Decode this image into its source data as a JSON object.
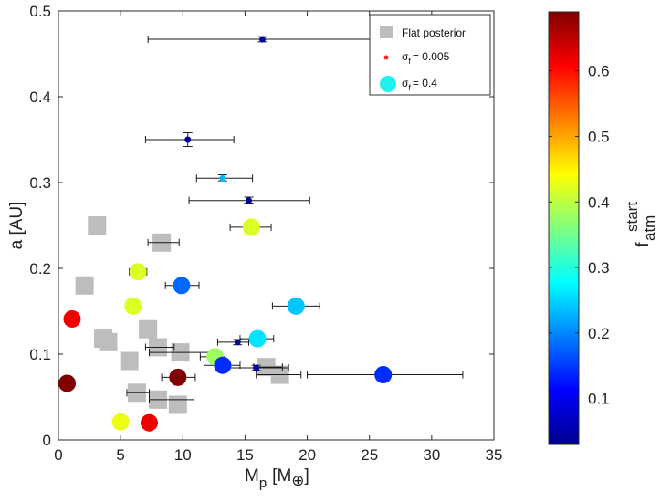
{
  "chart_data": {
    "type": "scatter",
    "xlim": [
      0,
      35
    ],
    "ylim": [
      0,
      0.5
    ],
    "xticks": [
      0,
      5,
      10,
      15,
      20,
      25,
      30,
      35
    ],
    "yticks": [
      0,
      0.1,
      0.2,
      0.3,
      0.4,
      0.5
    ],
    "xlabel": {
      "main": "M",
      "sub": "p",
      "units": "[M",
      "symbol": "⊕",
      "close": "]"
    },
    "ylabel": "a [AU]",
    "legend": {
      "position": "top-right",
      "entries": [
        {
          "label": "Flat posterior",
          "marker": "square",
          "color": "#bdbdbd"
        },
        {
          "label_main": "σ",
          "label_sub": "f",
          "label_rest": "= 0.005",
          "marker": "small-circle",
          "color": "#ff2020"
        },
        {
          "label_main": "σ",
          "label_sub": "f",
          "label_rest": "= 0.4",
          "marker": "large-circle",
          "color": "#20f0f0"
        }
      ]
    },
    "colorbar": {
      "range": [
        0.03,
        0.69
      ],
      "ticks": [
        0.1,
        0.2,
        0.3,
        0.4,
        0.5,
        0.6
      ],
      "label": {
        "main": "f",
        "sup": "start",
        "sub": "atm"
      },
      "colormap": "jet"
    },
    "flat_posterior": [
      {
        "x": 3.1,
        "y": 0.25
      },
      {
        "x": 8.3,
        "y": 0.23
      },
      {
        "x": 2.1,
        "y": 0.18
      },
      {
        "x": 7.2,
        "y": 0.129
      },
      {
        "x": 3.6,
        "y": 0.118
      },
      {
        "x": 4.0,
        "y": 0.114
      },
      {
        "x": 8.0,
        "y": 0.108
      },
      {
        "x": 9.8,
        "y": 0.102
      },
      {
        "x": 5.7,
        "y": 0.092
      },
      {
        "x": 16.7,
        "y": 0.085
      },
      {
        "x": 17.8,
        "y": 0.076
      },
      {
        "x": 6.3,
        "y": 0.055
      },
      {
        "x": 8.0,
        "y": 0.047
      },
      {
        "x": 9.6,
        "y": 0.041
      }
    ],
    "flat_errorbars": [
      {
        "y": 0.23,
        "xlo": 7.2,
        "xhi": 9.7
      },
      {
        "y": 0.108,
        "xlo": 7.0,
        "xhi": 9.3
      },
      {
        "y": 0.102,
        "xlo": 7.3,
        "xhi": 12.3
      },
      {
        "y": 0.055,
        "xlo": 5.5,
        "xhi": 7.3
      },
      {
        "y": 0.047,
        "xlo": 7.3,
        "xhi": 10.9
      },
      {
        "y": 0.085,
        "xlo": 15.7,
        "xhi": 18.0
      },
      {
        "y": 0.076,
        "xlo": 15.9,
        "xhi": 19.5
      }
    ],
    "small_sigma": [
      {
        "x": 16.4,
        "y": 0.467,
        "f": 0.05,
        "xlo": 7.2,
        "xhi": 25.6,
        "ylo": 0.464,
        "yhi": 0.47
      },
      {
        "x": 10.4,
        "y": 0.35,
        "f": 0.05,
        "xlo": 7.0,
        "xhi": 14.1,
        "ylo": 0.342,
        "yhi": 0.358
      },
      {
        "x": 13.2,
        "y": 0.305,
        "f": 0.23,
        "xlo": 11.1,
        "xhi": 15.6,
        "ylo": 0.302,
        "yhi": 0.309
      },
      {
        "x": 15.3,
        "y": 0.279,
        "f": 0.05,
        "xlo": 10.5,
        "xhi": 20.2,
        "ylo": 0.276,
        "yhi": 0.283
      },
      {
        "x": 14.4,
        "y": 0.114,
        "f": 0.05,
        "xlo": 12.8,
        "xhi": 15.3,
        "ylo": 0.111,
        "yhi": 0.117
      },
      {
        "x": 15.9,
        "y": 0.084,
        "f": 0.05,
        "xlo": 13.7,
        "xhi": 18.5,
        "ylo": 0.081,
        "yhi": 0.087
      }
    ],
    "large_sigma": [
      {
        "x": 15.5,
        "y": 0.248,
        "f": 0.42,
        "xlo": 13.8,
        "xhi": 17.1
      },
      {
        "x": 6.4,
        "y": 0.196,
        "f": 0.42,
        "xlo": 5.7,
        "xhi": 7.1
      },
      {
        "x": 9.9,
        "y": 0.18,
        "f": 0.18,
        "xlo": 8.6,
        "xhi": 11.3
      },
      {
        "x": 6.0,
        "y": 0.156,
        "f": 0.42
      },
      {
        "x": 19.1,
        "y": 0.156,
        "f": 0.24,
        "xlo": 17.2,
        "xhi": 21.0
      },
      {
        "x": 1.1,
        "y": 0.141,
        "f": 0.62
      },
      {
        "x": 16.0,
        "y": 0.118,
        "f": 0.26,
        "xlo": 14.6,
        "xhi": 17.3
      },
      {
        "x": 12.6,
        "y": 0.097,
        "f": 0.38,
        "xlo": 11.4,
        "xhi": 13.4
      },
      {
        "x": 13.2,
        "y": 0.087,
        "f": 0.14,
        "xlo": 11.7,
        "xhi": 14.6
      },
      {
        "x": 9.6,
        "y": 0.073,
        "f": 0.69,
        "xlo": 8.3,
        "xhi": 11.0
      },
      {
        "x": 26.1,
        "y": 0.076,
        "f": 0.14,
        "xlo": 20.0,
        "xhi": 32.5
      },
      {
        "x": 0.7,
        "y": 0.066,
        "f": 0.69
      },
      {
        "x": 5.0,
        "y": 0.021,
        "f": 0.43
      },
      {
        "x": 7.3,
        "y": 0.02,
        "f": 0.62
      }
    ]
  }
}
